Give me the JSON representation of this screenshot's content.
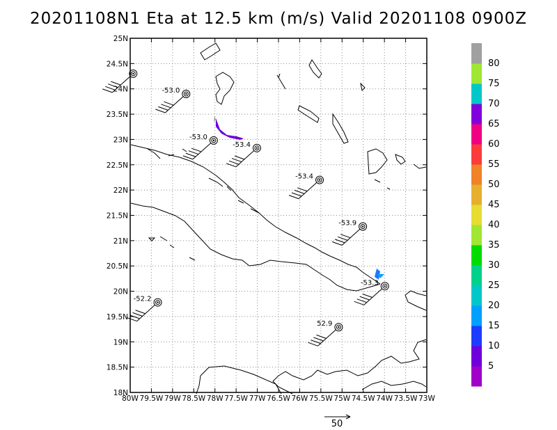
{
  "title": "20201108N1 Eta at 12.5 km (m/s) Valid 20201108 0900Z",
  "map": {
    "lon_range": [
      -80,
      -73
    ],
    "lat_range": [
      18,
      25
    ],
    "lon_ticks": [
      "80W",
      "79.5W",
      "79W",
      "78.5W",
      "78W",
      "77.5W",
      "77W",
      "76.5W",
      "76W",
      "75.5W",
      "75W",
      "74.5W",
      "74W",
      "73.5W",
      "73W"
    ],
    "lat_ticks": [
      "18N",
      "18.5N",
      "19N",
      "19.5N",
      "20N",
      "20.5N",
      "21N",
      "21.5N",
      "22N",
      "22.5N",
      "23N",
      "23.5N",
      "24N",
      "24.5N",
      "25N"
    ],
    "grid": "dotted"
  },
  "stations": [
    {
      "lon": -79.93,
      "lat": 24.3,
      "label": ""
    },
    {
      "lon": -78.68,
      "lat": 23.9,
      "label": "-53.0"
    },
    {
      "lon": -78.03,
      "lat": 22.98,
      "label": "-53.0"
    },
    {
      "lon": -77.01,
      "lat": 22.83,
      "label": "-53.4"
    },
    {
      "lon": -75.53,
      "lat": 22.2,
      "label": "-53.4"
    },
    {
      "lon": -74.51,
      "lat": 21.28,
      "label": "-53.9"
    },
    {
      "lon": -73.99,
      "lat": 20.1,
      "label": "-53.3"
    },
    {
      "lon": -79.35,
      "lat": 19.78,
      "label": "-52.2"
    },
    {
      "lon": -75.08,
      "lat": 19.29,
      "label": "52.9"
    }
  ],
  "colorbar": {
    "labels": [
      "5",
      "10",
      "15",
      "20",
      "25",
      "30",
      "35",
      "40",
      "45",
      "50",
      "55",
      "60",
      "65",
      "70",
      "75",
      "80"
    ],
    "colors": [
      "#a000c8",
      "#6e00dc",
      "#1e3cff",
      "#00a0ff",
      "#00c8c8",
      "#00d28c",
      "#00dc00",
      "#a0e632",
      "#e6dc32",
      "#e6af2d",
      "#f08228",
      "#fa3c3c",
      "#f00082",
      "#8200dc",
      "#00c8c8",
      "#a0e632",
      "#a0a0a0"
    ]
  },
  "reference_vector": {
    "label": "50"
  }
}
